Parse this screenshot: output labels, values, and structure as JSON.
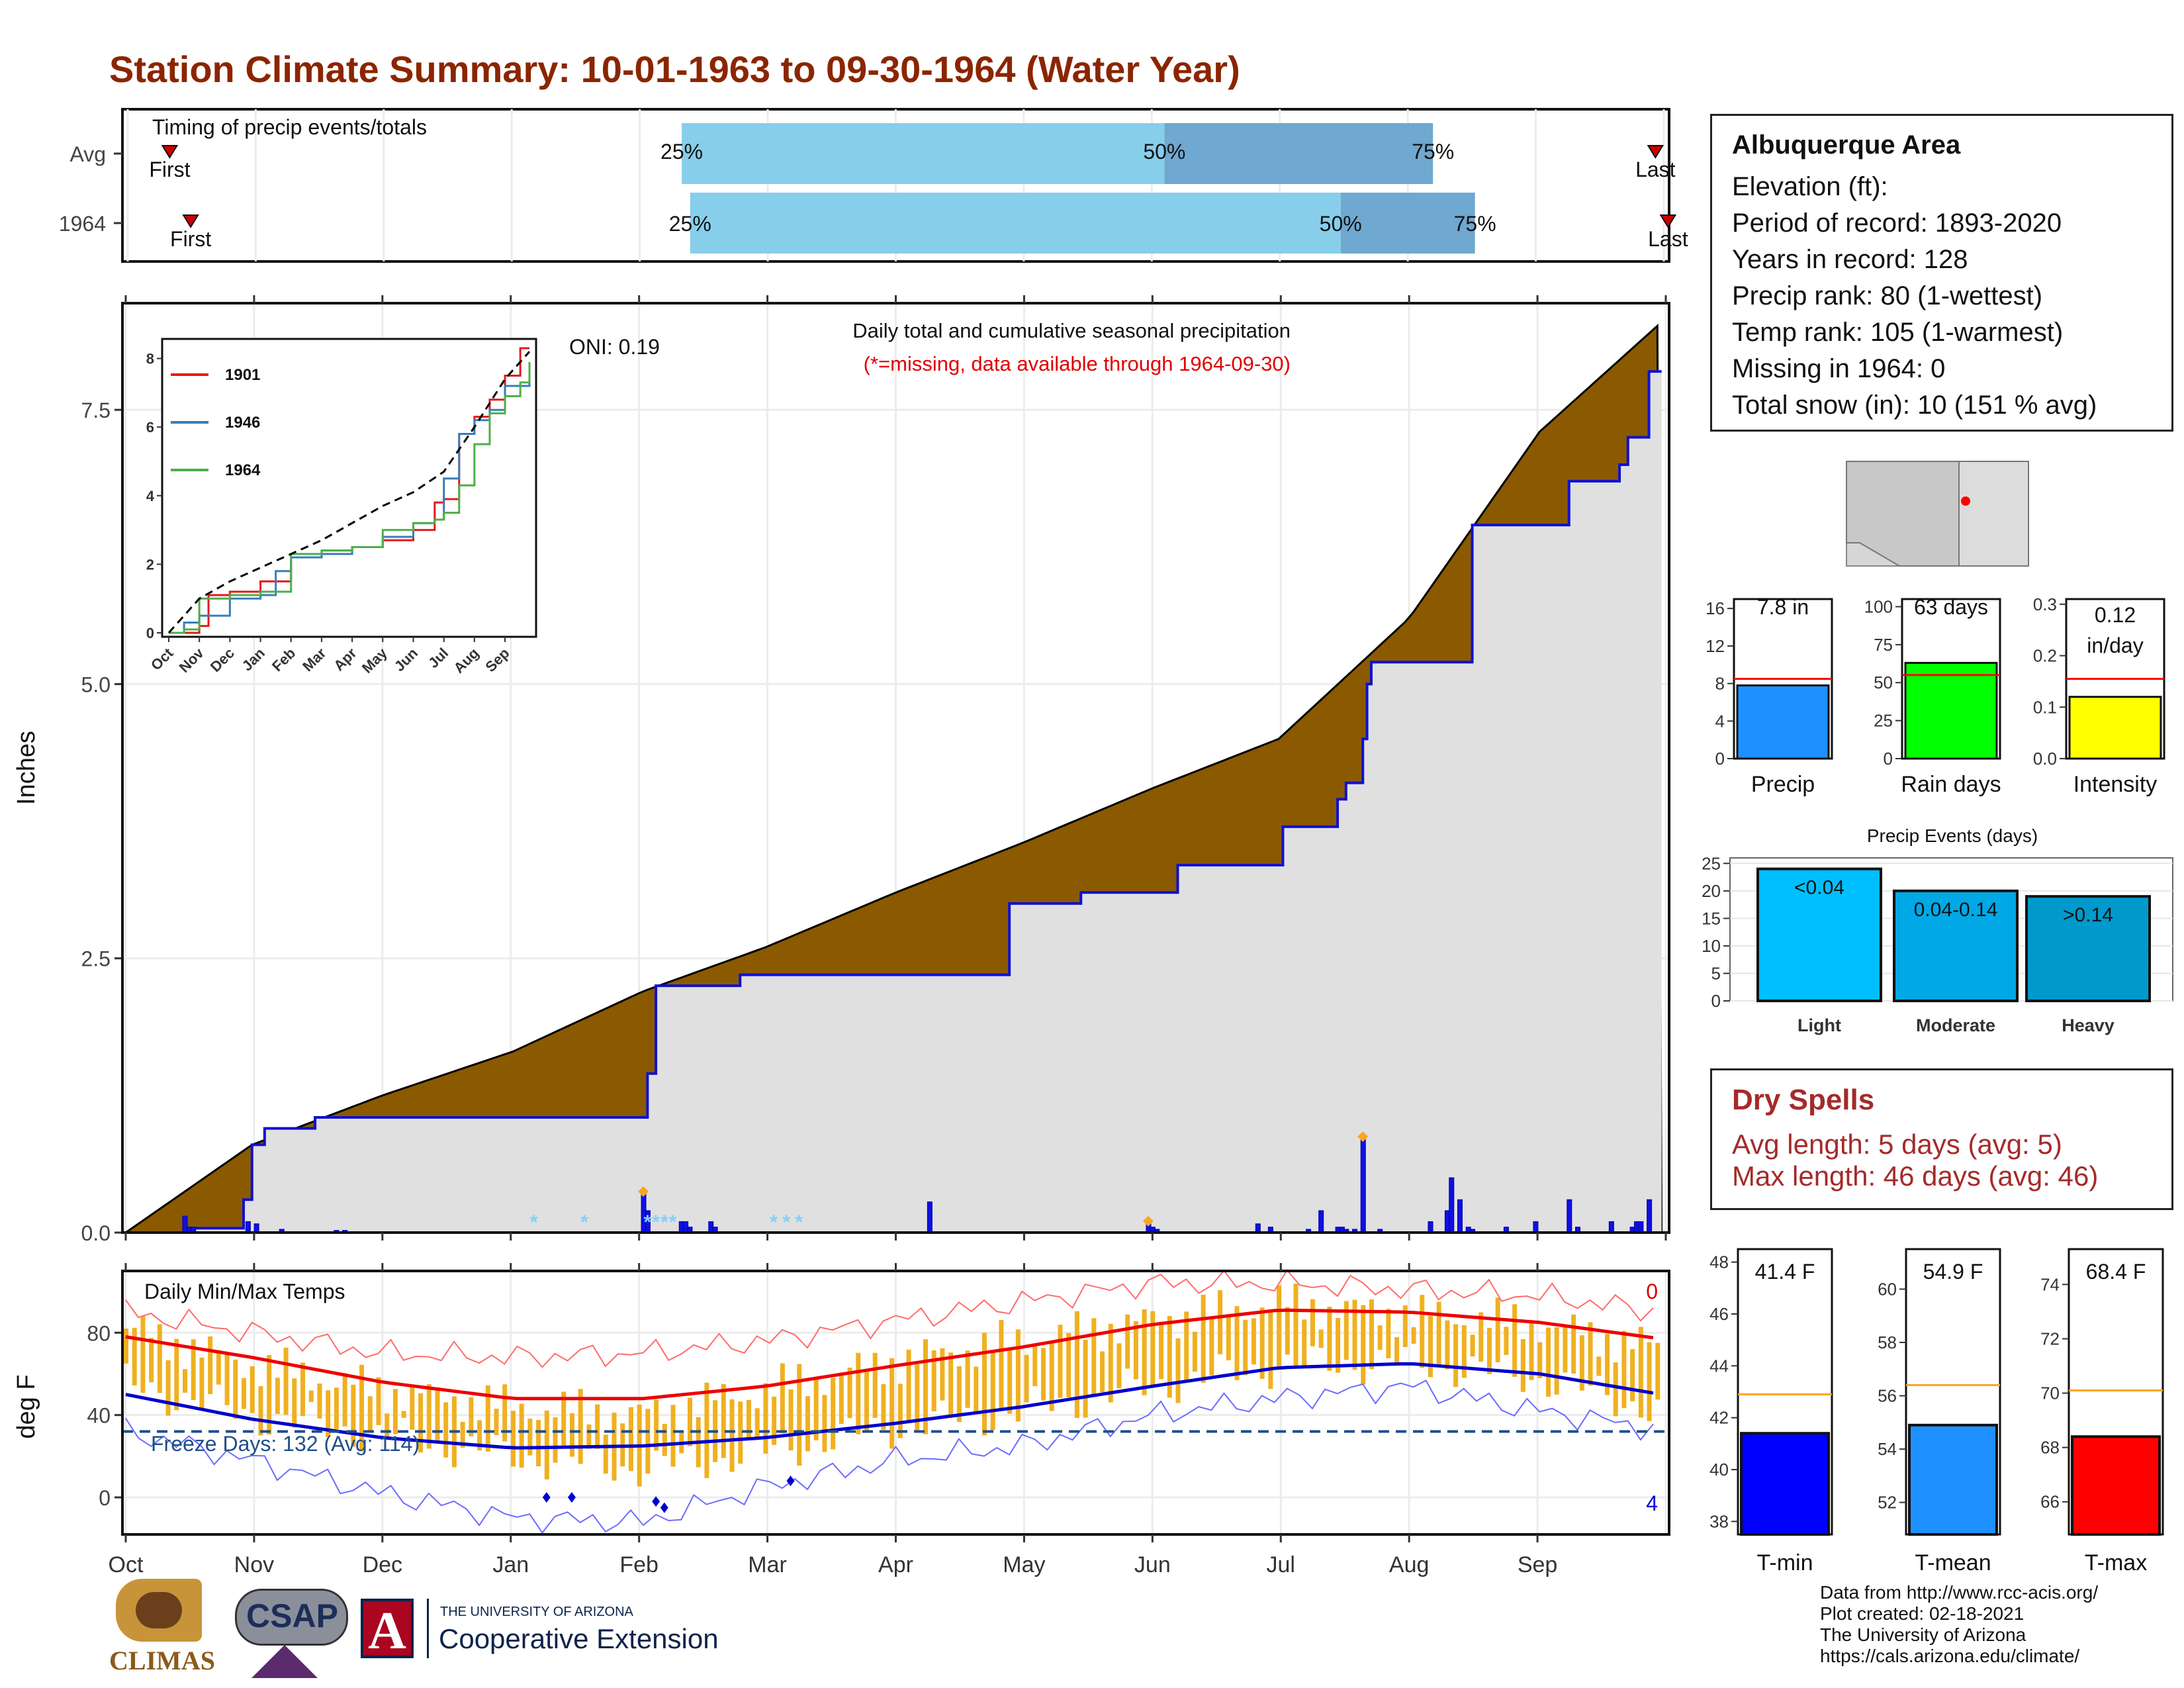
{
  "title": "Station Climate Summary: 10-01-1963 to 09-30-1964 (Water Year)",
  "timing": {
    "label": "Timing of precip events/totals",
    "rows": [
      {
        "name": "Avg",
        "first_label": "First",
        "last_label": "Last",
        "p25": "25%",
        "p50": "50%",
        "p75": "75%",
        "first": 10,
        "q25": 132,
        "q50": 247,
        "q75": 311,
        "last": 364
      },
      {
        "name": "1964",
        "first_label": "First",
        "last_label": "Last",
        "p25": "25%",
        "p50": "50%",
        "p75": "75%",
        "first": 15,
        "q25": 134,
        "q50": 289,
        "q75": 321,
        "last": 367
      }
    ]
  },
  "precip_panel": {
    "ylabel": "Inches",
    "caption": "Daily total and cumulative seasonal precipitation",
    "missing_note": "(*=missing, data available through 1964-09-30)",
    "oni": "ONI: 0.19",
    "y_ticks": [
      "0.0",
      "2.5",
      "5.0",
      "7.5"
    ]
  },
  "inset": {
    "series": [
      {
        "name": "1901",
        "color": "#e41a1c"
      },
      {
        "name": "1946",
        "color": "#377eb8"
      },
      {
        "name": "1964",
        "color": "#4daf4a"
      }
    ],
    "y_ticks": [
      "0",
      "2",
      "4",
      "6",
      "8"
    ],
    "x_ticks": [
      "Oct",
      "Nov",
      "Dec",
      "Jan",
      "Feb",
      "Mar",
      "Apr",
      "May",
      "Jun",
      "Jul",
      "Aug",
      "Sep"
    ]
  },
  "temp_panel": {
    "ylabel": "deg F",
    "label": "Daily Min/Max Temps",
    "freeze_days": "Freeze Days: 132 (Avg: 114)",
    "count_top": "0",
    "count_bottom": "4",
    "y_ticks": [
      "0",
      "40",
      "80"
    ]
  },
  "months": [
    "Oct",
    "Nov",
    "Dec",
    "Jan",
    "Feb",
    "Mar",
    "Apr",
    "May",
    "Jun",
    "Jul",
    "Aug",
    "Sep"
  ],
  "info_box": {
    "station": "Albuquerque Area",
    "elevation": "Elevation (ft):",
    "period": "Period of record: 1893-2020",
    "years": "Years in record: 128",
    "precip_rank": "Precip rank: 80 (1-wettest)",
    "temp_rank": "Temp rank: 105 (1-warmest)",
    "missing": "Missing in 1964: 0",
    "snow": "Total snow (in): 10 (151 % avg)"
  },
  "stat_bars": [
    {
      "name": "Precip",
      "value_label": "7.8 in",
      "value": 7.8,
      "avg": 8.5,
      "ymax": 17,
      "ticks": [
        "0",
        "4",
        "8",
        "12",
        "16"
      ],
      "tick_vals": [
        0,
        4,
        8,
        12,
        16
      ],
      "color": "#1e90ff"
    },
    {
      "name": "Rain days",
      "value_label": "63 days",
      "value": 63,
      "avg": 55,
      "ymax": 105,
      "ticks": [
        "0",
        "25",
        "50",
        "75",
        "100"
      ],
      "tick_vals": [
        0,
        25,
        50,
        75,
        100
      ],
      "color": "#00ff00"
    },
    {
      "name": "Intensity",
      "value_label": "0.12 in/day",
      "value": 0.12,
      "avg": 0.155,
      "ymax": 0.31,
      "ticks": [
        "0.0",
        "0.1",
        "0.2",
        "0.3"
      ],
      "tick_vals": [
        0,
        0.1,
        0.2,
        0.3
      ],
      "color": "#ffff00"
    }
  ],
  "precip_events": {
    "title": "Precip Events (days)",
    "y_ticks": [
      "0",
      "5",
      "10",
      "15",
      "20",
      "25"
    ],
    "categories": [
      "Light",
      "Moderate",
      "Heavy"
    ],
    "bar_labels": [
      "<0.04",
      "0.04-0.14",
      ">0.14"
    ],
    "values": [
      24,
      20,
      19
    ],
    "colors": [
      "#00bfff",
      "#00a9e6",
      "#0099cc"
    ]
  },
  "dry_spells": {
    "title": "Dry Spells",
    "avg_length": "Avg length: 5 days (avg: 5)",
    "max_length": "Max length: 46 days (avg: 46)"
  },
  "temp_bars": [
    {
      "name": "T-min",
      "value_label": "41.4 F",
      "value": 41.4,
      "avg": 42.9,
      "ymin": 37.5,
      "ymax": 48.5,
      "ticks": [
        "38",
        "40",
        "42",
        "44",
        "46",
        "48"
      ],
      "tick_vals": [
        38,
        40,
        42,
        44,
        46,
        48
      ],
      "color": "#0000ff"
    },
    {
      "name": "T-mean",
      "value_label": "54.9 F",
      "value": 54.9,
      "avg": 56.4,
      "ymin": 50.8,
      "ymax": 61.5,
      "ticks": [
        "52",
        "54",
        "56",
        "58",
        "60"
      ],
      "tick_vals": [
        52,
        54,
        56,
        58,
        60
      ],
      "color": "#1e90ff"
    },
    {
      "name": "T-max",
      "value_label": "68.4 F",
      "value": 68.4,
      "avg": 70.1,
      "ymin": 64.8,
      "ymax": 75.3,
      "ticks": [
        "66",
        "68",
        "70",
        "72",
        "74"
      ],
      "tick_vals": [
        66,
        68,
        70,
        72,
        74
      ],
      "color": "#ff0000"
    }
  ],
  "credits": {
    "line1": "Data from http://www.rcc-acis.org/",
    "line2": "Plot created: 02-18-2021",
    "line3": "The University of Arizona",
    "line4": "https://cals.arizona.edu/climate/"
  },
  "logos": {
    "climas": "CLIMAS",
    "csap": "CSAP",
    "ua_line1": "THE UNIVERSITY OF ARIZONA",
    "ua_line2": "Cooperative Extension"
  },
  "chart_data": [
    {
      "type": "area",
      "title": "Daily total and cumulative seasonal precipitation",
      "ylabel": "Inches",
      "ylim": [
        0,
        8.3
      ],
      "cumulative_avg": {
        "x_day": [
          0,
          30,
          61,
          92,
          123,
          152,
          183,
          213,
          244,
          274,
          305,
          336,
          365
        ],
        "y": [
          0,
          0.8,
          1.25,
          1.65,
          2.2,
          2.6,
          3.1,
          3.55,
          4.05,
          4.5,
          5.6,
          7.3,
          8.3
        ]
      },
      "cumulative_1964": {
        "x_day": [
          0,
          15,
          28,
          30,
          33,
          45,
          123,
          124,
          126,
          146,
          184,
          210,
          227,
          250,
          272,
          275,
          288,
          290,
          294,
          295,
          296,
          319,
          320,
          340,
          343,
          355,
          357,
          362,
          365
        ],
        "y": [
          0,
          0.04,
          0.3,
          0.8,
          0.95,
          1.05,
          1.05,
          1.45,
          2.25,
          2.35,
          2.35,
          3.0,
          3.1,
          3.35,
          3.35,
          3.7,
          3.95,
          4.1,
          4.5,
          5.0,
          5.2,
          5.2,
          6.45,
          6.45,
          6.85,
          7.0,
          7.25,
          7.85,
          7.85
        ]
      },
      "daily_bars": {
        "x_day": [
          14,
          15,
          16,
          29,
          31,
          37,
          50,
          52,
          123,
          124,
          132,
          133,
          134,
          139,
          140,
          191,
          243,
          244,
          245,
          269,
          272,
          281,
          284,
          288,
          289,
          290,
          292,
          294,
          298,
          310,
          314,
          315,
          317,
          319,
          320,
          328,
          335,
          343,
          345,
          353,
          358,
          359,
          360,
          362
        ],
        "y": [
          0.15,
          0.05,
          0.05,
          0.1,
          0.08,
          0.03,
          0.02,
          0.02,
          0.35,
          0.2,
          0.1,
          0.1,
          0.05,
          0.1,
          0.05,
          0.28,
          0.08,
          0.05,
          0.03,
          0.08,
          0.05,
          0.03,
          0.2,
          0.05,
          0.05,
          0.03,
          0.03,
          0.85,
          0.03,
          0.1,
          0.2,
          0.5,
          0.3,
          0.05,
          0.03,
          0.05,
          0.1,
          0.3,
          0.05,
          0.1,
          0.05,
          0.1,
          0.1,
          0.3
        ]
      },
      "snow_marks_day": [
        97,
        109,
        124,
        126,
        128,
        130,
        154,
        157,
        160
      ]
    },
    {
      "type": "line",
      "series": [
        {
          "name": "1901",
          "x_month": [
            0,
            1,
            1.3,
            2,
            3,
            4,
            5,
            6,
            7,
            8,
            8.7,
            9,
            9.5,
            10,
            10.5,
            11,
            11.5,
            11.8
          ],
          "y": [
            0,
            0.2,
            1.1,
            1.2,
            1.5,
            2.2,
            2.4,
            2.5,
            2.7,
            3.0,
            3.8,
            3.9,
            5.8,
            6.3,
            6.8,
            7.5,
            8.3,
            8.3
          ]
        },
        {
          "name": "1946",
          "x_month": [
            0,
            0.5,
            1,
            2,
            3,
            3.5,
            4,
            5,
            6,
            7,
            8,
            8.7,
            9,
            9.5,
            10,
            10.5,
            11,
            11.8
          ],
          "y": [
            0,
            0.3,
            0.5,
            1.0,
            1.1,
            1.8,
            2.2,
            2.3,
            2.5,
            2.8,
            3.2,
            3.3,
            4.5,
            5.8,
            6.2,
            6.5,
            7.2,
            7.5
          ]
        },
        {
          "name": "1964",
          "x_month": [
            0,
            0.5,
            1,
            2,
            3,
            4,
            5,
            6,
            7,
            8,
            8.7,
            9,
            9.5,
            10,
            10.5,
            11,
            11.5,
            11.8
          ],
          "y": [
            0,
            0.1,
            1.0,
            1.1,
            1.2,
            2.3,
            2.4,
            2.5,
            3.0,
            3.2,
            3.3,
            3.5,
            4.3,
            5.5,
            6.4,
            6.9,
            7.3,
            7.9
          ]
        },
        {
          "name": "avg",
          "x_month": [
            0,
            1,
            2,
            3,
            4,
            5,
            6,
            7,
            8,
            9,
            10,
            11,
            11.8
          ],
          "y": [
            0,
            1.0,
            1.5,
            1.9,
            2.3,
            2.7,
            3.2,
            3.7,
            4.1,
            4.7,
            6.0,
            7.4,
            8.2
          ]
        }
      ],
      "xlabel": "",
      "ylabel": "",
      "ylim": [
        0,
        8.3
      ]
    },
    {
      "type": "area",
      "title": "Daily Min/Max Temps",
      "ylabel": "deg F",
      "ylim": [
        -18,
        110
      ],
      "freeze_line": 32,
      "normal_max": {
        "x_day": [
          0,
          30,
          61,
          92,
          123,
          152,
          183,
          213,
          244,
          274,
          305,
          336,
          365
        ],
        "y": [
          78,
          68,
          56,
          48,
          48,
          54,
          64,
          73,
          84,
          91,
          90,
          85,
          77
        ]
      },
      "normal_min": {
        "x_day": [
          0,
          30,
          61,
          92,
          123,
          152,
          183,
          213,
          244,
          274,
          305,
          336,
          365
        ],
        "y": [
          50,
          38,
          29,
          24,
          25,
          29,
          36,
          44,
          54,
          63,
          65,
          60,
          50
        ]
      },
      "record_max": {
        "x_day": [
          0,
          30,
          61,
          92,
          123,
          152,
          183,
          213,
          244,
          274,
          305,
          336,
          365
        ],
        "y": [
          90,
          80,
          70,
          68,
          70,
          76,
          86,
          95,
          104,
          104,
          101,
          98,
          90
        ]
      },
      "record_min": {
        "x_day": [
          0,
          30,
          61,
          92,
          123,
          152,
          183,
          213,
          244,
          274,
          305,
          336,
          365
        ],
        "y": [
          32,
          18,
          2,
          -10,
          -12,
          5,
          18,
          25,
          40,
          48,
          54,
          42,
          33
        ]
      },
      "tmax_1964": {
        "x_day": [
          0,
          30,
          61,
          92,
          123,
          152,
          183,
          213,
          244,
          274,
          305,
          336,
          365
        ],
        "y": [
          82,
          64,
          52,
          44,
          40,
          52,
          66,
          76,
          86,
          94,
          89,
          84,
          72
        ]
      },
      "tmin_1964": {
        "x_day": [
          0,
          30,
          61,
          92,
          123,
          152,
          183,
          213,
          244,
          274,
          305,
          336,
          365
        ],
        "y": [
          55,
          40,
          30,
          20,
          14,
          22,
          34,
          42,
          54,
          64,
          66,
          58,
          42
        ]
      },
      "freeze_days": 132
    }
  ]
}
